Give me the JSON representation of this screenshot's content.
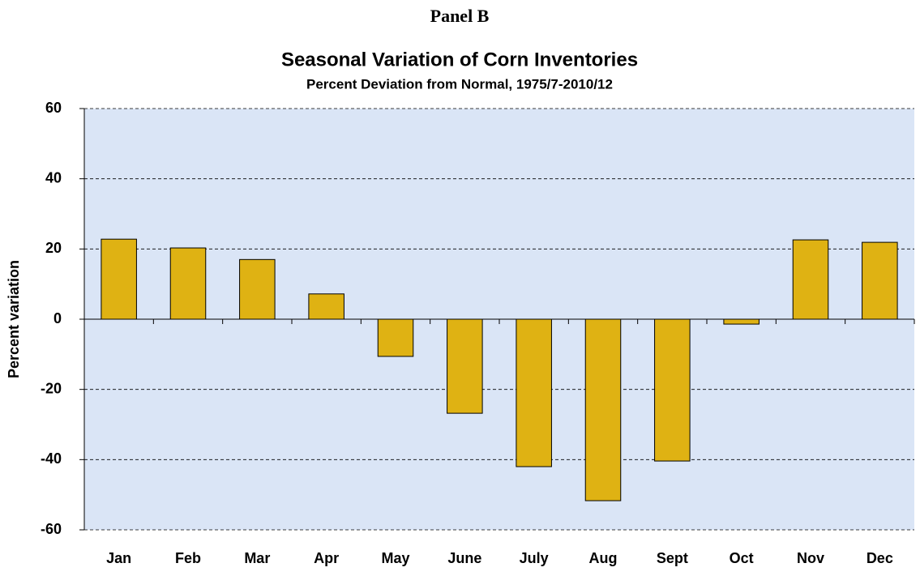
{
  "chart_data": {
    "type": "bar",
    "panel": "Panel B",
    "title": "Seasonal Variation of Corn Inventories",
    "subtitle": "Percent Deviation from Normal, 1975/7-2010/12",
    "y_label": "Percent variation",
    "categories": [
      "Jan",
      "Feb",
      "Mar",
      "Apr",
      "May",
      "June",
      "July",
      "Aug",
      "Sept",
      "Oct",
      "Nov",
      "Dec"
    ],
    "values": [
      22.8,
      20.3,
      17,
      7.2,
      -10.6,
      -26.8,
      -42,
      -51.7,
      -40.4,
      -1.4,
      22.6,
      21.9
    ],
    "color": "#dfb213",
    "ylim": [
      -60,
      60
    ],
    "yticks": [
      -60,
      -40,
      -20,
      0,
      20,
      40,
      60
    ],
    "grid": true
  }
}
